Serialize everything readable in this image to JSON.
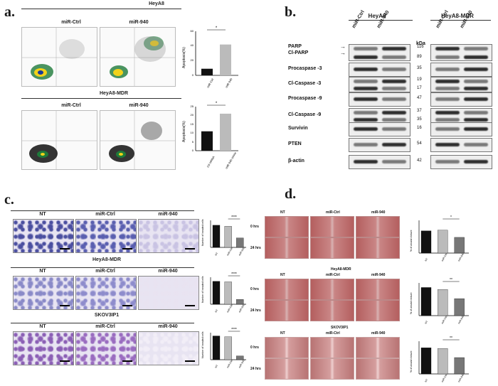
{
  "panels": {
    "a": "a.",
    "b": "b.",
    "c": "c.",
    "d": "d."
  },
  "a": {
    "line1": "HeyA8",
    "line2": "HeyA8-MDR",
    "conds": [
      "miR-Ctrl",
      "miR-940"
    ],
    "star": "*",
    "chart1": {
      "ylabel": "Apoptosis(%)",
      "categories": [
        "miR-Ctrl",
        "miR-940"
      ],
      "values": [
        9,
        42
      ],
      "yticks": [
        "0",
        "20",
        "40",
        "60"
      ],
      "ylim": [
        0,
        60
      ]
    },
    "chart2": {
      "ylabel": "Apoptosis(%)",
      "categories": [
        "Ctl mRNA",
        "miR-940 mimic"
      ],
      "values": [
        11,
        21
      ],
      "yticks": [
        "0",
        "5",
        "10",
        "15",
        "20",
        "25"
      ],
      "ylim": [
        0,
        25
      ]
    }
  },
  "b": {
    "cellA": "HeyA8",
    "cellB": "HeyA8-MDR",
    "lanes": [
      "miR-Ctrl",
      "miR-940"
    ],
    "kda_label": "kDa",
    "rows": [
      {
        "label": "PARP",
        "label2": "Cl-PARP",
        "kda": [
          "116",
          "89"
        ]
      },
      {
        "label": "Procaspase -3",
        "kda": [
          "35"
        ]
      },
      {
        "label": "Cl-Caspase -3",
        "kda": [
          "19",
          "17"
        ]
      },
      {
        "label": "Procaspase -9",
        "kda": [
          "47"
        ]
      },
      {
        "label": "Cl-Caspase -9",
        "kda": [
          "37",
          "35"
        ]
      },
      {
        "label": "Survivin",
        "kda": [
          "16"
        ]
      },
      {
        "label": "PTEN",
        "kda": [
          "54"
        ]
      },
      {
        "label": "β-actin",
        "kda": [
          "42"
        ]
      }
    ]
  },
  "c": {
    "conds": [
      "NT",
      "miR-Ctrl",
      "miR-940"
    ],
    "row2": "HeyA8-MDR",
    "row3": "SKOV3IP1",
    "star": "****",
    "ylabel": "Number of invaded cells",
    "chart_data": [
      {
        "type": "bar",
        "categories": [
          "NT",
          "miR-Ctrl",
          "miR-940"
        ],
        "values": [
          82,
          78,
          35
        ],
        "ylim": [
          0,
          100
        ],
        "colors": [
          "#111111",
          "#bbbbbb",
          "#777777"
        ]
      },
      {
        "type": "bar",
        "categories": [
          "NT",
          "miR-Ctrl",
          "miR-940"
        ],
        "values": [
          85,
          83,
          18
        ],
        "ylim": [
          0,
          100
        ],
        "colors": [
          "#111111",
          "#bbbbbb",
          "#777777"
        ]
      },
      {
        "type": "bar",
        "categories": [
          "NT",
          "miR-Ctrl",
          "miR-940"
        ],
        "values": [
          88,
          85,
          14
        ],
        "ylim": [
          0,
          100
        ],
        "colors": [
          "#111111",
          "#bbbbbb",
          "#777777"
        ]
      }
    ]
  },
  "d": {
    "conds": [
      "NT",
      "miR-Ctrl",
      "miR-940"
    ],
    "times": [
      "0 hrs",
      "24 hrs"
    ],
    "row2": "HeyA8-MDR",
    "row3": "SKOV3IP1",
    "stars": [
      "*",
      "**",
      "**"
    ],
    "ylabel": "% of wound closure",
    "chart_data": [
      {
        "type": "bar",
        "categories": [
          "NT",
          "miR-Ctrl",
          "miR-940"
        ],
        "values": [
          68,
          70,
          48
        ],
        "ylim": [
          0,
          100
        ],
        "colors": [
          "#111111",
          "#bbbbbb",
          "#777777"
        ]
      },
      {
        "type": "bar",
        "categories": [
          "NT",
          "miR-Ctrl",
          "miR-940"
        ],
        "values": [
          86,
          80,
          52
        ],
        "ylim": [
          0,
          100
        ],
        "colors": [
          "#111111",
          "#bbbbbb",
          "#777777"
        ]
      },
      {
        "type": "bar",
        "categories": [
          "NT",
          "miR-Ctrl",
          "miR-940"
        ],
        "values": [
          80,
          78,
          50
        ],
        "ylim": [
          0,
          100
        ],
        "colors": [
          "#111111",
          "#bbbbbb",
          "#777777"
        ]
      }
    ]
  }
}
